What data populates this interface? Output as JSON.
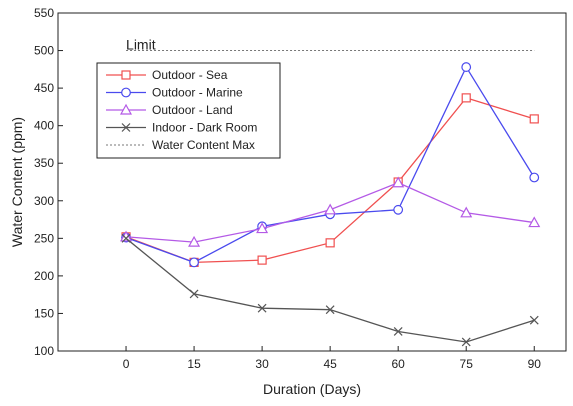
{
  "chart_data": {
    "type": "line",
    "xlabel": "Duration (Days)",
    "ylabel": "Water Content (ppm)",
    "x": [
      0,
      15,
      30,
      45,
      60,
      75,
      90
    ],
    "xlim": [
      -15,
      97
    ],
    "ylim": [
      100,
      550
    ],
    "x_ticks": [
      0,
      15,
      30,
      45,
      60,
      75,
      90
    ],
    "y_ticks": [
      100,
      150,
      200,
      250,
      300,
      350,
      400,
      450,
      500,
      550
    ],
    "grid": false,
    "legend_position": "top-left",
    "series": [
      {
        "name": "Outdoor - Sea",
        "marker": "square",
        "color": "#f05050",
        "dashed": false,
        "values": [
          252,
          218,
          221,
          244,
          325,
          437,
          409
        ]
      },
      {
        "name": "Outdoor - Marine",
        "marker": "circle",
        "color": "#4a4aee",
        "dashed": false,
        "values": [
          251,
          218,
          266,
          282,
          288,
          478,
          331
        ]
      },
      {
        "name": "Outdoor - Land",
        "marker": "triangle",
        "color": "#b45ae6",
        "dashed": false,
        "values": [
          252,
          245,
          263,
          288,
          324,
          284,
          271
        ]
      },
      {
        "name": "Indoor - Dark Room",
        "marker": "x",
        "color": "#555555",
        "dashed": false,
        "values": [
          250,
          176,
          157,
          155,
          126,
          112,
          141
        ]
      },
      {
        "name": "Water Content Max",
        "marker": "none",
        "color": "#777777",
        "dashed": true,
        "values": [
          500,
          500,
          500,
          500,
          500,
          500,
          500
        ]
      }
    ],
    "annotations": [
      {
        "text": "Limit",
        "x": 0,
        "y": 500
      }
    ]
  }
}
